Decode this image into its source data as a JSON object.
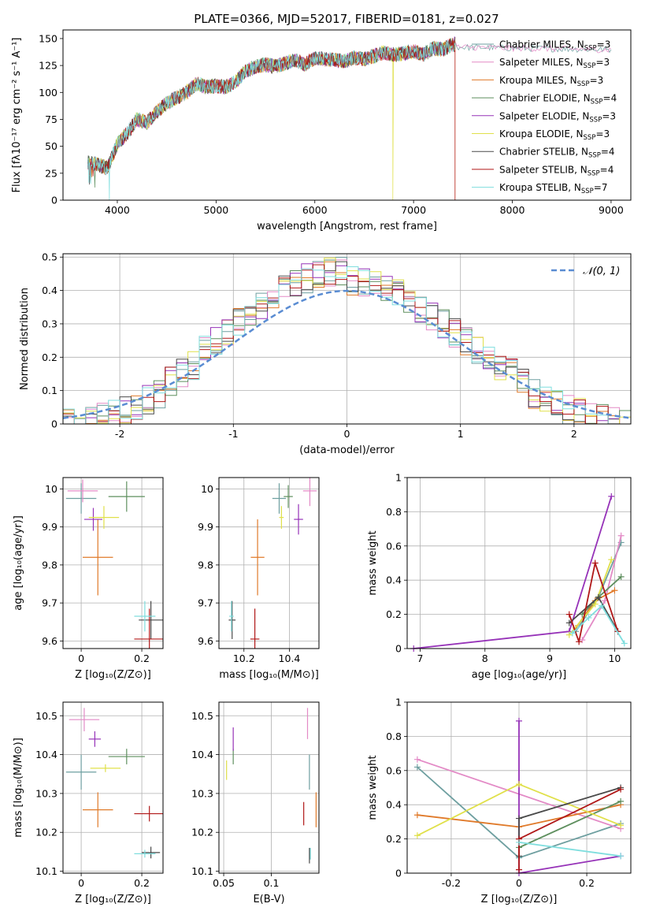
{
  "figure": {
    "title": "PLATE=0366, MJD=52017, FIBERID=0181, z=0.027"
  },
  "colors": {
    "series": [
      "#6e9fa0",
      "#e38ac6",
      "#e07a2a",
      "#5e8f5e",
      "#9632b8",
      "#e0e04a",
      "#4a4a4a",
      "#b01818",
      "#7fdede"
    ],
    "gaussian": "#5a8cd2"
  },
  "chart_data": [
    {
      "id": "spectrum",
      "type": "line",
      "xlabel": "wavelength [Angstrom, rest frame]",
      "ylabel": "Flux [fλ10⁻¹⁷ erg cm⁻² s⁻¹ A⁻¹]",
      "xlim": [
        3450,
        9200
      ],
      "ylim": [
        0,
        158
      ],
      "xticks": [
        4000,
        5000,
        6000,
        7000,
        8000,
        9000
      ],
      "yticks": [
        0,
        25,
        50,
        75,
        100,
        125,
        150
      ],
      "grid": false,
      "legend": "top-right",
      "envelope": {
        "x": [
          3700,
          3800,
          3900,
          4000,
          4100,
          4200,
          4300,
          4400,
          4500,
          4600,
          4700,
          4800,
          4900,
          5000,
          5100,
          5200,
          5300,
          5400,
          5500,
          5600,
          5700,
          5800,
          5900,
          6000,
          6100,
          6200,
          6300,
          6400,
          6500,
          6600,
          6700,
          6800,
          6900,
          7000,
          7100,
          7200,
          7300,
          7400
        ],
        "y": [
          35,
          33,
          30,
          52,
          62,
          75,
          72,
          82,
          90,
          95,
          100,
          108,
          105,
          106,
          105,
          110,
          120,
          124,
          126,
          124,
          127,
          130,
          126,
          132,
          131,
          130,
          129,
          132,
          131,
          134,
          137,
          135,
          136,
          138,
          135,
          141,
          140,
          145
        ]
      },
      "series": [
        {
          "name": "Chabrier MILES, N_SSP=3",
          "x_start": 3700,
          "x_end": 9000,
          "dips": []
        },
        {
          "name": "Salpeter MILES, N_SSP=3",
          "x_start": 3700,
          "x_end": 9000,
          "dips": []
        },
        {
          "name": "Kroupa MILES, N_SSP=3",
          "x_start": 3700,
          "x_end": 7420,
          "dips": [
            7420
          ]
        },
        {
          "name": "Chabrier ELODIE, N_SSP=4",
          "x_start": 3700,
          "x_end": 7420,
          "dips": []
        },
        {
          "name": "Salpeter ELODIE, N_SSP=3",
          "x_start": 3700,
          "x_end": 7420,
          "dips": []
        },
        {
          "name": "Kroupa ELODIE, N_SSP=3",
          "x_start": 3700,
          "x_end": 7420,
          "dips": [
            6790
          ]
        },
        {
          "name": "Chabrier STELIB, N_SSP=4",
          "x_start": 3700,
          "x_end": 7420,
          "dips": []
        },
        {
          "name": "Salpeter STELIB, N_SSP=4",
          "x_start": 3700,
          "x_end": 7420,
          "dips": [
            7420
          ]
        },
        {
          "name": "Kroupa STELIB, N_SSP=7",
          "x_start": 3700,
          "x_end": 7420,
          "dips": [
            3920
          ]
        }
      ]
    },
    {
      "id": "residuals",
      "type": "line",
      "xlabel": "(data-model)/error",
      "ylabel": "Normed distribution",
      "xlim": [
        -2.5,
        2.5
      ],
      "ylim": [
        0,
        0.51
      ],
      "xticks": [
        -2,
        -1,
        0,
        1,
        2
      ],
      "yticks": [
        0.0,
        0.1,
        0.2,
        0.3,
        0.4,
        0.5
      ],
      "grid": true,
      "legend": "top-right",
      "gaussian_label": "𝒩(0, 1)",
      "bin_width": 0.1
    },
    {
      "id": "age_vs_Z",
      "type": "scatter",
      "xlabel": "Z [log₁₀(Z/Z⊙)]",
      "ylabel": "age  [log₁₀(age/yr)]",
      "xlim": [
        -0.06,
        0.27
      ],
      "ylim": [
        9.58,
        10.03
      ],
      "xticks": [
        0.0,
        0.2
      ],
      "yticks": [
        9.6,
        9.7,
        9.8,
        9.9,
        10.0
      ],
      "grid": true,
      "points": [
        {
          "x": 0.0,
          "y": 9.975,
          "xerr": 0.05,
          "yerr": 0.04
        },
        {
          "x": 0.005,
          "y": 9.995,
          "xerr": 0.05,
          "yerr": 0.03
        },
        {
          "x": 0.055,
          "y": 9.82,
          "xerr": 0.05,
          "yerr": 0.1
        },
        {
          "x": 0.15,
          "y": 9.98,
          "xerr": 0.06,
          "yerr": 0.04
        },
        {
          "x": 0.04,
          "y": 9.92,
          "xerr": 0.03,
          "yerr": 0.03
        },
        {
          "x": 0.075,
          "y": 9.925,
          "xerr": 0.05,
          "yerr": 0.03
        },
        {
          "x": 0.23,
          "y": 9.655,
          "xerr": 0.04,
          "yerr": 0.05
        },
        {
          "x": 0.225,
          "y": 9.605,
          "xerr": 0.05,
          "yerr": 0.08
        },
        {
          "x": 0.21,
          "y": 9.665,
          "xerr": 0.035,
          "yerr": 0.04
        }
      ]
    },
    {
      "id": "age_vs_mass",
      "type": "scatter",
      "xlabel": "mass [log₁₀(M/M⊙)]",
      "ylabel": "",
      "xlim": [
        10.09,
        10.53
      ],
      "ylim": [
        9.58,
        10.03
      ],
      "xticks": [
        10.2,
        10.4
      ],
      "yticks": [
        9.6,
        9.7,
        9.8,
        9.9,
        10.0
      ],
      "grid": true,
      "points": [
        {
          "x": 10.355,
          "y": 9.975,
          "xerr": 0.03,
          "yerr": 0.04
        },
        {
          "x": 10.49,
          "y": 9.995,
          "xerr": 0.03,
          "yerr": 0.04
        },
        {
          "x": 10.26,
          "y": 9.82,
          "xerr": 0.03,
          "yerr": 0.1
        },
        {
          "x": 10.395,
          "y": 9.98,
          "xerr": 0.02,
          "yerr": 0.03
        },
        {
          "x": 10.44,
          "y": 9.92,
          "xerr": 0.02,
          "yerr": 0.04
        },
        {
          "x": 10.365,
          "y": 9.925,
          "xerr": 0.01,
          "yerr": 0.03
        },
        {
          "x": 10.148,
          "y": 9.655,
          "xerr": 0.015,
          "yerr": 0.05
        },
        {
          "x": 10.248,
          "y": 9.605,
          "xerr": 0.02,
          "yerr": 0.08
        },
        {
          "x": 10.145,
          "y": 9.665,
          "xerr": 0.01,
          "yerr": 0.04
        }
      ]
    },
    {
      "id": "weight_vs_age",
      "type": "line",
      "xlabel": "age  [log₁₀(age/yr)]",
      "ylabel": "mass weight",
      "xlim": [
        6.8,
        10.25
      ],
      "ylim": [
        0,
        1.0
      ],
      "xticks": [
        7,
        8,
        9,
        10
      ],
      "yticks": [
        0.0,
        0.2,
        0.4,
        0.6,
        0.8,
        1.0
      ],
      "grid": true,
      "lines": [
        {
          "x": [
            9.4,
            9.75,
            10.1
          ],
          "y": [
            0.1,
            0.3,
            0.62
          ]
        },
        {
          "x": [
            9.5,
            9.85,
            10.1
          ],
          "y": [
            0.05,
            0.28,
            0.66
          ]
        },
        {
          "x": [
            9.4,
            9.7,
            10.0
          ],
          "y": [
            0.12,
            0.28,
            0.34
          ]
        },
        {
          "x": [
            9.5,
            9.75,
            10.1
          ],
          "y": [
            0.2,
            0.3,
            0.42
          ]
        },
        {
          "x": [
            6.9,
            9.3,
            9.95
          ],
          "y": [
            0.0,
            0.1,
            0.89
          ]
        },
        {
          "x": [
            9.3,
            9.7,
            9.95
          ],
          "y": [
            0.08,
            0.26,
            0.52
          ]
        },
        {
          "x": [
            9.3,
            9.75,
            10.05
          ],
          "y": [
            0.15,
            0.3,
            0.1
          ]
        },
        {
          "x": [
            9.3,
            9.45,
            9.7,
            10.05
          ],
          "y": [
            0.2,
            0.04,
            0.5,
            0.1
          ]
        },
        {
          "x": [
            9.35,
            9.6,
            9.8,
            10.15
          ],
          "y": [
            0.09,
            0.18,
            0.25,
            0.03
          ]
        }
      ]
    },
    {
      "id": "mass_vs_Z",
      "type": "scatter",
      "xlabel": "Z [log₁₀(Z/Z⊙)]",
      "ylabel": "mass [log₁₀(M/M⊙)]",
      "xlim": [
        -0.06,
        0.27
      ],
      "ylim": [
        10.095,
        10.535
      ],
      "xticks": [
        0.0,
        0.2
      ],
      "yticks": [
        10.1,
        10.2,
        10.3,
        10.4,
        10.5
      ],
      "grid": true,
      "points": [
        {
          "x": 0.0,
          "y": 10.355,
          "xerr": 0.05,
          "yerr": 0.045
        },
        {
          "x": 0.01,
          "y": 10.49,
          "xerr": 0.05,
          "yerr": 0.03
        },
        {
          "x": 0.055,
          "y": 10.258,
          "xerr": 0.05,
          "yerr": 0.045
        },
        {
          "x": 0.15,
          "y": 10.395,
          "xerr": 0.06,
          "yerr": 0.02
        },
        {
          "x": 0.045,
          "y": 10.44,
          "xerr": 0.02,
          "yerr": 0.02
        },
        {
          "x": 0.08,
          "y": 10.365,
          "xerr": 0.05,
          "yerr": 0.01
        },
        {
          "x": 0.23,
          "y": 10.148,
          "xerr": 0.03,
          "yerr": 0.015
        },
        {
          "x": 0.225,
          "y": 10.248,
          "xerr": 0.05,
          "yerr": 0.02
        },
        {
          "x": 0.21,
          "y": 10.145,
          "xerr": 0.035,
          "yerr": 0.01
        }
      ]
    },
    {
      "id": "mass_vs_ebv",
      "type": "scatter",
      "xlabel": "E(B-V)",
      "ylabel": "",
      "xlim": [
        0.045,
        0.15
      ],
      "ylim": [
        10.095,
        10.535
      ],
      "xticks": [
        0.05,
        0.1
      ],
      "yticks": [
        10.1,
        10.2,
        10.3,
        10.4,
        10.5
      ],
      "grid": true,
      "points": [
        {
          "x": 0.14,
          "y": 10.355,
          "xerr": 0,
          "yerr": 0.045
        },
        {
          "x": 0.138,
          "y": 10.48,
          "xerr": 0,
          "yerr": 0.04
        },
        {
          "x": 0.147,
          "y": 10.258,
          "xerr": 0,
          "yerr": 0.045
        },
        {
          "x": 0.06,
          "y": 10.395,
          "xerr": 0,
          "yerr": 0.02
        },
        {
          "x": 0.06,
          "y": 10.44,
          "xerr": 0,
          "yerr": 0.03
        },
        {
          "x": 0.053,
          "y": 10.36,
          "xerr": 0,
          "yerr": 0.025
        },
        {
          "x": 0.14,
          "y": 10.14,
          "xerr": 0,
          "yerr": 0.02
        },
        {
          "x": 0.134,
          "y": 10.248,
          "xerr": 0,
          "yerr": 0.03
        },
        {
          "x": 0.141,
          "y": 10.145,
          "xerr": 0,
          "yerr": 0.015
        }
      ]
    },
    {
      "id": "weight_vs_Z",
      "type": "line",
      "xlabel": "Z [log₁₀(Z/Z⊙)]",
      "ylabel": "mass weight",
      "xlim": [
        -0.33,
        0.33
      ],
      "ylim": [
        0,
        1.0
      ],
      "xticks": [
        -0.2,
        0.0,
        0.2
      ],
      "yticks": [
        0.0,
        0.2,
        0.4,
        0.6,
        0.8,
        1.0
      ],
      "grid": true,
      "lines": [
        {
          "x": [
            -0.3,
            0.0,
            0.3
          ],
          "y": [
            0.62,
            0.09,
            0.29
          ]
        },
        {
          "x": [
            -0.3,
            0.3
          ],
          "y": [
            0.665,
            0.26
          ]
        },
        {
          "x": [
            -0.3,
            0.0,
            0.3
          ],
          "y": [
            0.34,
            0.27,
            0.4
          ]
        },
        {
          "x": [
            0.0,
            0.3
          ],
          "y": [
            0.15,
            0.42
          ]
        },
        {
          "x": [
            0.0,
            0.0,
            0.3
          ],
          "y": [
            0.89,
            0.0,
            0.1
          ]
        },
        {
          "x": [
            -0.3,
            0.0,
            0.3
          ],
          "y": [
            0.22,
            0.52,
            0.28
          ]
        },
        {
          "x": [
            0.0,
            0.0,
            0.3
          ],
          "y": [
            0.1,
            0.32,
            0.5
          ]
        },
        {
          "x": [
            0.0,
            0.0,
            0.3
          ],
          "y": [
            0.02,
            0.2,
            0.49
          ]
        },
        {
          "x": [
            0.0,
            0.3
          ],
          "y": [
            0.18,
            0.1
          ]
        }
      ]
    }
  ]
}
